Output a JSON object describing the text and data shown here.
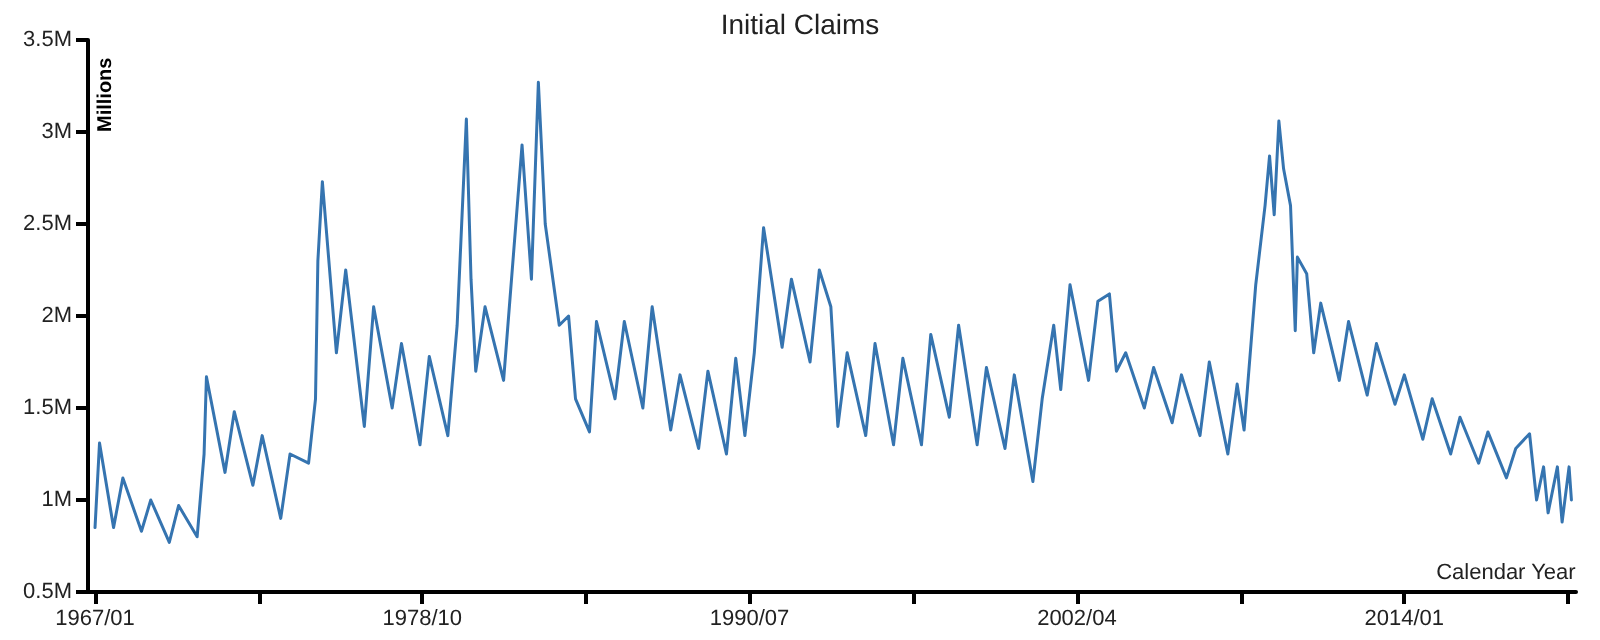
{
  "chart_data": {
    "type": "line",
    "title": "Initial Claims",
    "xlabel": "Calendar Year",
    "ylabel": "Millions",
    "x": [
      "1967-01",
      "1967-03",
      "1967-09",
      "1968-01",
      "1968-09",
      "1969-01",
      "1969-09",
      "1970-01",
      "1970-09",
      "1970-12",
      "1971-01",
      "1971-09",
      "1972-01",
      "1972-09",
      "1973-01",
      "1973-09",
      "1974-01",
      "1974-09",
      "1974-12",
      "1975-01",
      "1975-03",
      "1975-09",
      "1976-01",
      "1976-09",
      "1977-01",
      "1977-09",
      "1978-01",
      "1978-09",
      "1979-01",
      "1979-09",
      "1980-01",
      "1980-05",
      "1980-07",
      "1980-09",
      "1981-01",
      "1981-09",
      "1982-05",
      "1982-09",
      "1982-12",
      "1983-03",
      "1983-09",
      "1984-01",
      "1984-04",
      "1984-10",
      "1985-01",
      "1985-09",
      "1986-01",
      "1986-09",
      "1987-01",
      "1987-09",
      "1988-01",
      "1988-09",
      "1989-01",
      "1989-09",
      "1990-01",
      "1990-05",
      "1990-09",
      "1991-01",
      "1991-09",
      "1992-01",
      "1992-09",
      "1993-01",
      "1993-06",
      "1993-09",
      "1994-01",
      "1994-09",
      "1995-01",
      "1995-09",
      "1996-01",
      "1996-09",
      "1997-01",
      "1997-09",
      "1998-01",
      "1998-09",
      "1999-01",
      "1999-09",
      "2000-01",
      "2000-09",
      "2001-01",
      "2001-06",
      "2001-09",
      "2002-01",
      "2002-09",
      "2003-01",
      "2003-06",
      "2003-09",
      "2004-01",
      "2004-09",
      "2005-01",
      "2005-09",
      "2006-01",
      "2006-09",
      "2007-01",
      "2007-09",
      "2008-01",
      "2008-04",
      "2008-07",
      "2008-09",
      "2009-01",
      "2009-03",
      "2009-05",
      "2009-07",
      "2009-09",
      "2009-12",
      "2010-02",
      "2010-03",
      "2010-07",
      "2010-10",
      "2011-01",
      "2011-09",
      "2012-01",
      "2012-09",
      "2013-01",
      "2013-09",
      "2014-01",
      "2014-09",
      "2015-01",
      "2015-09",
      "2016-01",
      "2016-09",
      "2017-01",
      "2017-09",
      "2018-01",
      "2018-07",
      "2018-10",
      "2019-01",
      "2019-03",
      "2019-07",
      "2019-09",
      "2019-12",
      "2020-01"
    ],
    "series": [
      {
        "color": "#3574b0",
        "values": [
          0.85,
          1.31,
          0.85,
          1.12,
          0.83,
          1.0,
          0.77,
          0.97,
          0.8,
          1.25,
          1.67,
          1.15,
          1.48,
          1.08,
          1.35,
          0.9,
          1.25,
          1.2,
          1.55,
          2.3,
          2.73,
          1.8,
          2.25,
          1.4,
          2.05,
          1.5,
          1.85,
          1.3,
          1.78,
          1.35,
          1.95,
          3.07,
          2.2,
          1.7,
          2.05,
          1.65,
          2.93,
          2.2,
          3.27,
          2.5,
          1.95,
          2.0,
          1.55,
          1.37,
          1.97,
          1.55,
          1.97,
          1.5,
          2.05,
          1.38,
          1.68,
          1.28,
          1.7,
          1.25,
          1.77,
          1.35,
          1.8,
          2.48,
          1.83,
          2.2,
          1.75,
          2.25,
          2.05,
          1.4,
          1.8,
          1.35,
          1.85,
          1.3,
          1.77,
          1.3,
          1.9,
          1.45,
          1.95,
          1.3,
          1.72,
          1.28,
          1.68,
          1.1,
          1.55,
          1.95,
          1.6,
          2.17,
          1.65,
          2.08,
          2.12,
          1.7,
          1.8,
          1.5,
          1.72,
          1.42,
          1.68,
          1.35,
          1.75,
          1.25,
          1.63,
          1.38,
          1.85,
          2.17,
          2.6,
          2.87,
          2.55,
          3.06,
          2.8,
          2.6,
          1.92,
          2.32,
          2.23,
          1.8,
          2.07,
          1.65,
          1.97,
          1.57,
          1.85,
          1.52,
          1.68,
          1.33,
          1.55,
          1.25,
          1.45,
          1.2,
          1.37,
          1.12,
          1.28,
          1.36,
          1.0,
          1.18,
          0.93,
          1.18,
          0.88,
          1.18,
          1.0
        ]
      }
    ],
    "xlim": [
      "1966-10",
      "2020-03"
    ],
    "xticks": [
      {
        "value": "1967-01",
        "label": "1967/01"
      },
      {
        "value": "1972-11-16",
        "label": null
      },
      {
        "value": "1978-10",
        "label": "1978/10"
      },
      {
        "value": "1984-08-16",
        "label": null
      },
      {
        "value": "1990-07",
        "label": "1990/07"
      },
      {
        "value": "1996-05-16",
        "label": null
      },
      {
        "value": "2002-04",
        "label": "2002/04"
      },
      {
        "value": "2008-02-16",
        "label": null
      },
      {
        "value": "2014-01",
        "label": "2014/01"
      },
      {
        "value": "2019-11-16",
        "label": null
      }
    ],
    "ylim": [
      0.5,
      3.5
    ],
    "yticks": [
      {
        "value": 0.5,
        "label": "0.5M"
      },
      {
        "value": 1,
        "label": "1M"
      },
      {
        "value": 1.5,
        "label": "1.5M"
      },
      {
        "value": 2,
        "label": "2M"
      },
      {
        "value": 2.5,
        "label": "2.5M"
      },
      {
        "value": 3,
        "label": "3M"
      },
      {
        "value": 3.5,
        "label": "3.5M"
      }
    ],
    "grid": false,
    "marker": "none",
    "line_style": "solid"
  }
}
